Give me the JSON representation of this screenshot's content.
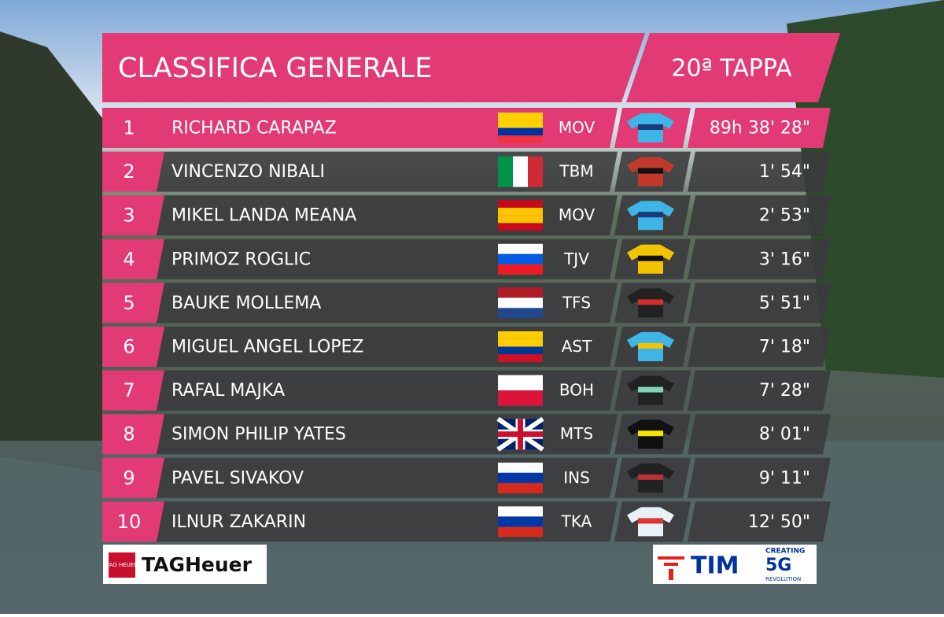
{
  "header": {
    "title": "CLASSIFICA GENERALE",
    "stage": "20ª TAPPA"
  },
  "rows": [
    {
      "rank": "1",
      "name": "RICHARD CARAPAZ",
      "team": "MOV",
      "time": "89h 38' 28\""
    },
    {
      "rank": "2",
      "name": "VINCENZO NIBALI",
      "team": "TBM",
      "time": "1' 54\""
    },
    {
      "rank": "3",
      "name": "MIKEL LANDA MEANA",
      "team": "MOV",
      "time": "2' 53\""
    },
    {
      "rank": "4",
      "name": "PRIMOZ ROGLIC",
      "team": "TJV",
      "time": "3' 16\""
    },
    {
      "rank": "5",
      "name": "BAUKE MOLLEMA",
      "team": "TFS",
      "time": "5' 51\""
    },
    {
      "rank": "6",
      "name": "MIGUEL ANGEL LOPEZ",
      "team": "AST",
      "time": "7' 18\""
    },
    {
      "rank": "7",
      "name": "RAFAL MAJKA",
      "team": "BOH",
      "time": "7' 28\""
    },
    {
      "rank": "8",
      "name": "SIMON PHILIP YATES",
      "team": "MTS",
      "time": "8' 01\""
    },
    {
      "rank": "9",
      "name": "PAVEL SIVAKOV",
      "team": "INS",
      "time": "9' 11\""
    },
    {
      "rank": "10",
      "name": "ILNUR ZAKARIN",
      "team": "TKA",
      "time": "12' 50\""
    }
  ],
  "sponsors": {
    "left_badge": "TAG HEUER",
    "left": "TAGHeuer",
    "right": "TIM",
    "right_top": "CREATING",
    "right_big": "5G",
    "right_bottom": "REVOLUTION"
  }
}
